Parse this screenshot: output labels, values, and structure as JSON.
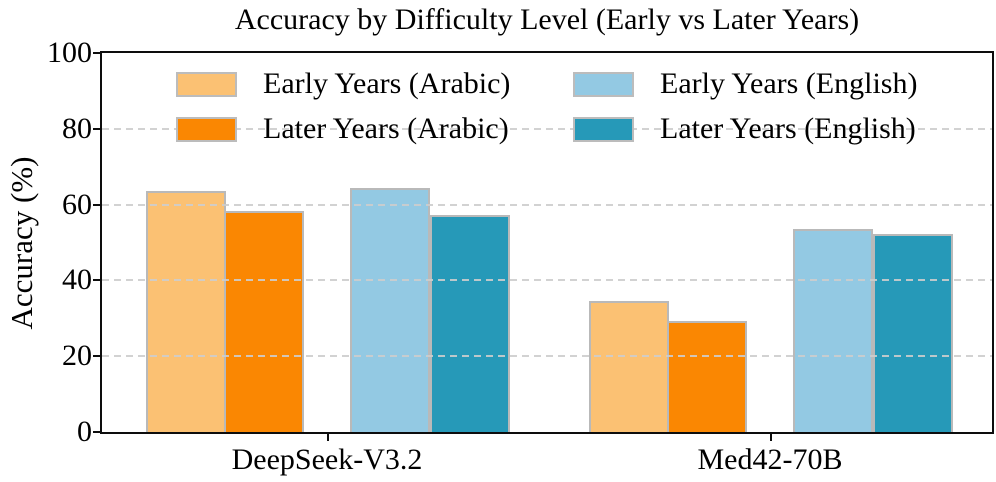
{
  "chart_data": {
    "type": "bar",
    "title": "Accuracy by Difficulty Level (Early vs Later Years)",
    "ylabel": "Accuracy (%)",
    "xlabel": "",
    "ylim": [
      0,
      100
    ],
    "yticks": [
      0,
      20,
      40,
      60,
      80,
      100
    ],
    "grid": "horizontal dashed, drawn above bars",
    "legend_position": "upper left inside plot, 2 columns",
    "categories": [
      "DeepSeek-V3.2",
      "Med42-70B"
    ],
    "series": [
      {
        "name": "Early Years (Arabic)",
        "color": "#fbc173",
        "values": [
          63.7,
          34.5
        ]
      },
      {
        "name": "Later Years (Arabic)",
        "color": "#fa8702",
        "values": [
          58.3,
          29.3
        ]
      },
      {
        "name": "Early Years (English)",
        "color": "#93c9e3",
        "values": [
          64.5,
          53.7
        ]
      },
      {
        "name": "Later Years (English)",
        "color": "#2699b8",
        "values": [
          57.4,
          52.2
        ]
      }
    ],
    "bar_edge_color": "#b9b9b9",
    "grid_color": "#cdcdcd",
    "axis_color": "#0d0d0d"
  }
}
